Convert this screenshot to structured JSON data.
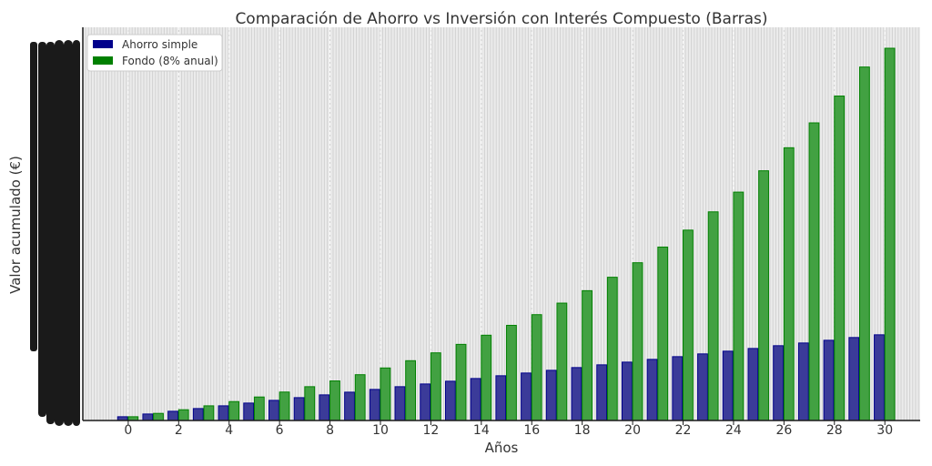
{
  "chart_data": {
    "type": "bar",
    "title": "Comparación de Ahorro vs Inversión con Interés Compuesto (Barras)",
    "xlabel": "Años",
    "ylabel": "Valor acumulado (€)",
    "x": [
      0,
      1,
      2,
      3,
      4,
      5,
      6,
      7,
      8,
      9,
      10,
      11,
      12,
      13,
      14,
      15,
      16,
      17,
      18,
      19,
      20,
      21,
      22,
      23,
      24,
      25,
      26,
      27,
      28,
      29,
      30
    ],
    "x_ticks": [
      "0",
      "2",
      "4",
      "6",
      "8",
      "10",
      "12",
      "14",
      "16",
      "18",
      "20",
      "22",
      "24",
      "26",
      "28",
      "30"
    ],
    "xlim": [
      -1.8,
      31.4
    ],
    "ylim": [
      0,
      1
    ],
    "y_scale_note": "y tick labels are illegible (overprinted); values are read as a fraction of the largest bar",
    "grid": true,
    "legend_position": "top-left",
    "series": [
      {
        "name": "Ahorro simple",
        "color": "#00008b",
        "values": [
          0.0101,
          0.0174,
          0.0248,
          0.0321,
          0.0394,
          0.0468,
          0.0541,
          0.0614,
          0.0688,
          0.0761,
          0.0835,
          0.0908,
          0.0981,
          0.1055,
          0.1128,
          0.1202,
          0.1275,
          0.1348,
          0.1422,
          0.1495,
          0.1568,
          0.1642,
          0.1715,
          0.1789,
          0.1862,
          0.1935,
          0.2009,
          0.2082,
          0.2155,
          0.2229,
          0.2302
        ]
      },
      {
        "name": "Fondo (8% anual)",
        "color": "#008000",
        "values": [
          0.0101,
          0.0191,
          0.0289,
          0.0394,
          0.0508,
          0.0631,
          0.0764,
          0.0908,
          0.1063,
          0.123,
          0.1411,
          0.1606,
          0.1817,
          0.2045,
          0.2291,
          0.2556,
          0.2843,
          0.3153,
          0.3487,
          0.3848,
          0.4238,
          0.4659,
          0.5114,
          0.5605,
          0.6135,
          0.6708,
          0.7327,
          0.7995,
          0.8716,
          0.9495,
          1.0
        ]
      }
    ]
  }
}
